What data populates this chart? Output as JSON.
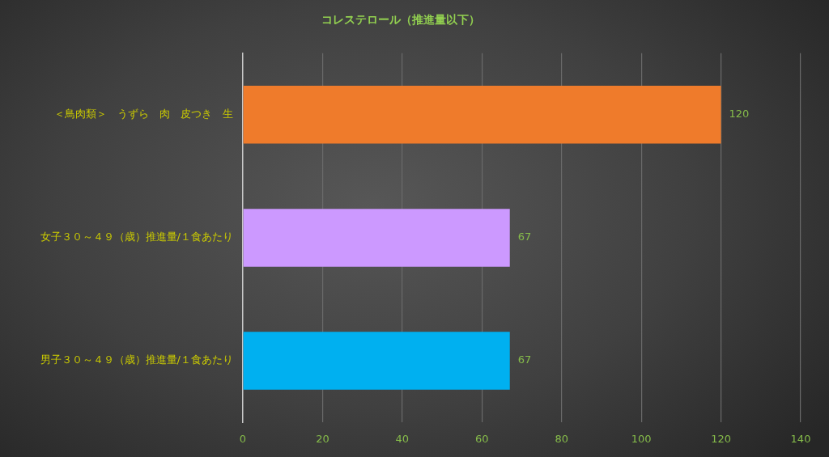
{
  "chart_data": {
    "type": "bar",
    "orientation": "horizontal",
    "title": "コレステロール（推進量以下）",
    "categories": [
      "＜鳥肉類＞　うずら　肉　皮つき　生",
      "女子３０～４９（歳）推進量/１食あたり",
      "男子３０～４９（歳）推進量/１食あたり"
    ],
    "values": [
      120,
      67,
      67
    ],
    "colors": [
      "#ef7b2b",
      "#cc99ff",
      "#00b0f0"
    ],
    "xlim": [
      0,
      140
    ],
    "xticks": [
      0,
      20,
      40,
      60,
      80,
      100,
      120,
      140
    ],
    "grid": "x",
    "data_labels": true
  }
}
